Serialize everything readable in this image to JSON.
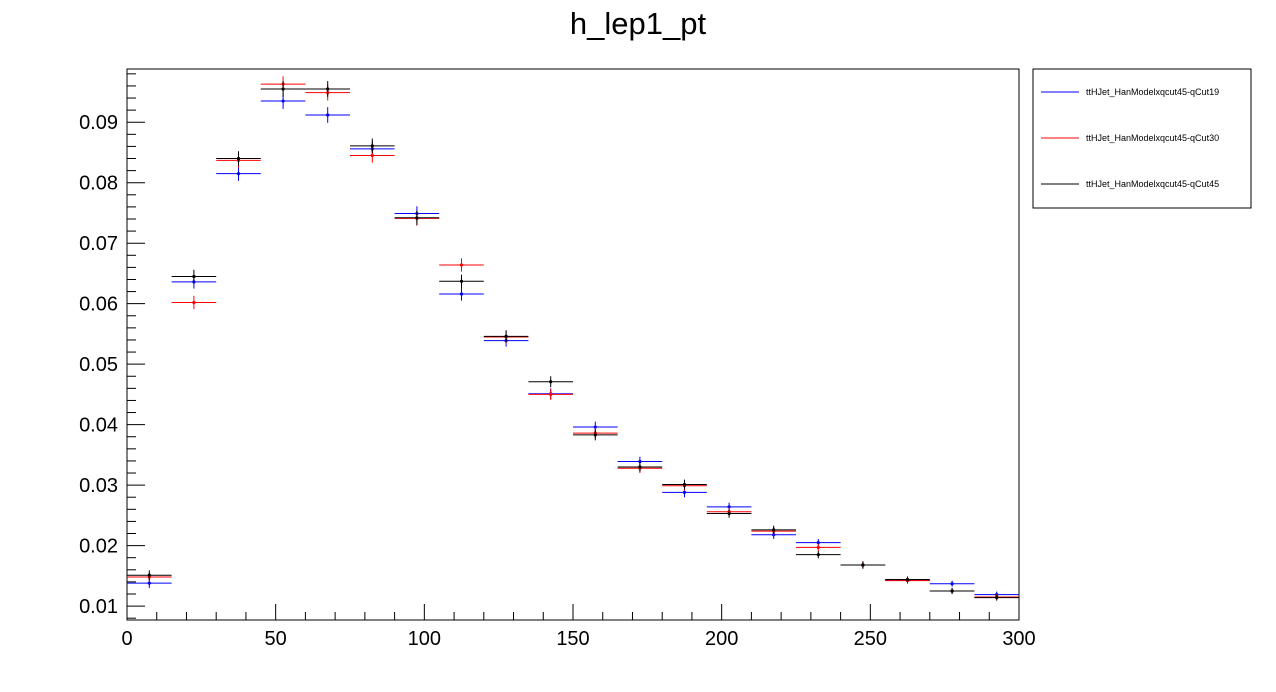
{
  "chart_data": {
    "type": "scatter",
    "title": "h_lep1_pt",
    "xlabel": "",
    "ylabel": "",
    "xlim": [
      0,
      300
    ],
    "ylim": [
      0.0077,
      0.0988
    ],
    "grid": false,
    "legend_position": "top-right-outside",
    "x_ticks": [
      0,
      50,
      100,
      150,
      200,
      250,
      300
    ],
    "x_tick_labels": [
      "0",
      "50",
      "100",
      "150",
      "200",
      "250",
      "300"
    ],
    "y_ticks": [
      0.01,
      0.02,
      0.03,
      0.04,
      0.05,
      0.06,
      0.07,
      0.08,
      0.09
    ],
    "y_tick_labels": [
      "0.01",
      "0.02",
      "0.03",
      "0.04",
      "0.05",
      "0.06",
      "0.07",
      "0.08",
      "0.09"
    ],
    "x": [
      7.5,
      22.5,
      37.5,
      52.5,
      67.5,
      82.5,
      97.5,
      112.5,
      127.5,
      142.5,
      157.5,
      172.5,
      187.5,
      202.5,
      217.5,
      232.5,
      247.5,
      262.5,
      277.5,
      292.5
    ],
    "bin_half_width": 7.5,
    "series": [
      {
        "name": "ttHJet_HanModelxqcut45-qCut19",
        "color": "#0000ff",
        "values": [
          0.0138,
          0.0636,
          0.0815,
          0.0935,
          0.0912,
          0.0856,
          0.0749,
          0.0616,
          0.0539,
          0.0451,
          0.0396,
          0.0339,
          0.0288,
          0.0264,
          0.0218,
          0.0205,
          0.0168,
          0.0143,
          0.0137,
          0.0119
        ],
        "errors": [
          0.0008,
          0.0011,
          0.0012,
          0.0013,
          0.0013,
          0.0012,
          0.0012,
          0.0011,
          0.001,
          0.0009,
          0.0009,
          0.0008,
          0.0008,
          0.0007,
          0.0007,
          0.0006,
          0.0006,
          0.0005,
          0.0005,
          0.0005
        ]
      },
      {
        "name": "ttHJet_HanModelxqcut45-qCut30",
        "color": "#ff0000",
        "values": [
          0.0148,
          0.0602,
          0.0837,
          0.0963,
          0.0949,
          0.0845,
          0.0741,
          0.0664,
          0.0545,
          0.045,
          0.0386,
          0.0328,
          0.0299,
          0.0256,
          0.0224,
          0.0197,
          0.0168,
          0.0142,
          0.0125,
          0.0115
        ],
        "errors": [
          0.0008,
          0.0011,
          0.0012,
          0.0013,
          0.0013,
          0.0012,
          0.0012,
          0.0011,
          0.001,
          0.0009,
          0.0009,
          0.0008,
          0.0008,
          0.0007,
          0.0007,
          0.0006,
          0.0006,
          0.0005,
          0.0005,
          0.0005
        ]
      },
      {
        "name": "ttHJet_HanModelxqcut45-qCut45",
        "color": "#000000",
        "values": [
          0.0151,
          0.0645,
          0.084,
          0.0955,
          0.0955,
          0.0861,
          0.0742,
          0.0637,
          0.0546,
          0.0471,
          0.0383,
          0.033,
          0.0301,
          0.0253,
          0.0226,
          0.0185,
          0.0168,
          0.0144,
          0.0125,
          0.0114
        ],
        "errors": [
          0.0008,
          0.0011,
          0.0012,
          0.0013,
          0.0013,
          0.0012,
          0.0012,
          0.0011,
          0.001,
          0.0009,
          0.0009,
          0.0008,
          0.0008,
          0.0007,
          0.0007,
          0.0006,
          0.0006,
          0.0005,
          0.0005,
          0.0005
        ]
      }
    ]
  }
}
